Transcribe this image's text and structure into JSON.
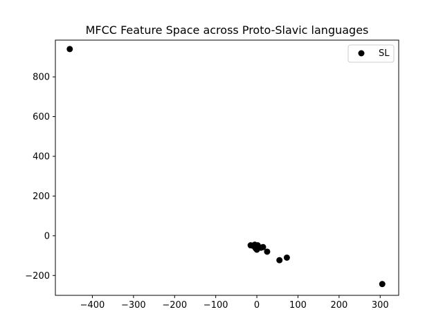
{
  "chart_data": {
    "type": "scatter",
    "title": "MFCC Feature Space across Proto-Slavic languages",
    "xlabel": "",
    "ylabel": "",
    "xlim": [
      -490,
      345
    ],
    "ylim": [
      -300,
      985
    ],
    "xticks": [
      -400,
      -300,
      -200,
      -100,
      0,
      100,
      200,
      300
    ],
    "yticks": [
      -200,
      0,
      200,
      400,
      600,
      800
    ],
    "grid": false,
    "legend": {
      "placement": "top-right"
    },
    "series": [
      {
        "name": "SL",
        "color": "#000000",
        "points": [
          [
            -455,
            940
          ],
          [
            -15,
            -48
          ],
          [
            -10,
            -50
          ],
          [
            -5,
            -45
          ],
          [
            -2,
            -52
          ],
          [
            0,
            -55
          ],
          [
            2,
            -48
          ],
          [
            -3,
            -63
          ],
          [
            0,
            -70
          ],
          [
            5,
            -58
          ],
          [
            10,
            -60
          ],
          [
            15,
            -57
          ],
          [
            25,
            -80
          ],
          [
            55,
            -123
          ],
          [
            73,
            -110
          ],
          [
            305,
            -243
          ]
        ]
      }
    ]
  }
}
